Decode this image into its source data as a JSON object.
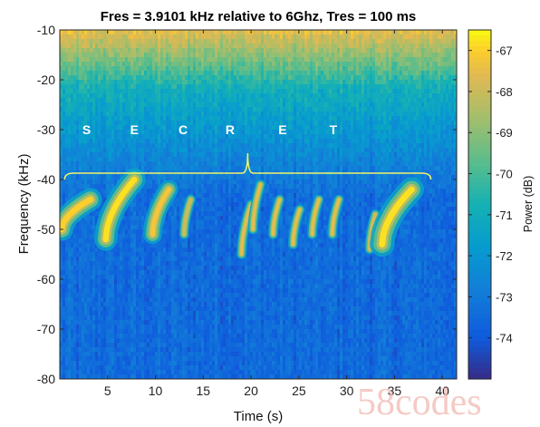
{
  "chart_data": {
    "type": "heatmap",
    "title": "Fres = 3.9101 kHz relative to 6Ghz, Tres = 100 ms",
    "xlabel": "Time (s)",
    "ylabel": "Frequency (kHz)",
    "xlim": [
      0,
      41.5
    ],
    "ylim": [
      -80,
      -10
    ],
    "xticks": [
      5,
      10,
      15,
      20,
      25,
      30,
      35,
      40
    ],
    "xtick_labels": [
      "5",
      "10",
      "15",
      "20",
      "25",
      "30",
      "35",
      "40"
    ],
    "yticks": [
      -10,
      -20,
      -30,
      -40,
      -50,
      -60,
      -70,
      -80
    ],
    "ytick_labels": [
      "-10",
      "-20",
      "-30",
      "-40",
      "-50",
      "-60",
      "-70",
      "-80"
    ],
    "colorbar": {
      "label": "Power (dB)",
      "range": [
        -75,
        -66.5
      ],
      "ticks": [
        -67,
        -68,
        -69,
        -70,
        -71,
        -72,
        -73,
        -74
      ],
      "tick_labels": [
        "-67",
        "-68",
        "-69",
        "-70",
        "-71",
        "-72",
        "-73",
        "-74"
      ],
      "colormap": "parula"
    },
    "background": {
      "description_level": "noise floor",
      "top_edge_power_db": -67.5,
      "upper_band_power_db": -71,
      "floor_power_db": -73.5
    },
    "annotation": {
      "letters": [
        {
          "text": "S",
          "time": 2.8
        },
        {
          "text": "E",
          "time": 7.8
        },
        {
          "text": "C",
          "time": 12.9
        },
        {
          "text": "R",
          "time": 17.8
        },
        {
          "text": "E",
          "time": 23.3
        },
        {
          "text": "T",
          "time": 28.6
        }
      ],
      "letter_freq": -30,
      "brace": {
        "t_start": 0.5,
        "t_end": 38.8,
        "freq": -40
      }
    },
    "chirps": [
      {
        "t_start": 0.2,
        "t_end": 3.2,
        "f_start": -50,
        "f_end": -44,
        "width": 1.2,
        "peak_db": -67
      },
      {
        "t_start": 4.8,
        "t_end": 7.8,
        "f_start": -52,
        "f_end": -40,
        "width": 1.2,
        "peak_db": -66.8
      },
      {
        "t_start": 9.7,
        "t_end": 11.4,
        "f_start": -51,
        "f_end": -42,
        "width": 1.0,
        "peak_db": -67.2
      },
      {
        "t_start": 13.0,
        "t_end": 13.7,
        "f_start": -51,
        "f_end": -44,
        "width": 0.5,
        "peak_db": -68
      },
      {
        "t_start": 19.0,
        "t_end": 20.0,
        "f_start": -55,
        "f_end": -45,
        "width": 0.5,
        "peak_db": -67.5
      },
      {
        "t_start": 20.2,
        "t_end": 21.0,
        "f_start": -50,
        "f_end": -41,
        "width": 0.5,
        "peak_db": -67.5
      },
      {
        "t_start": 22.3,
        "t_end": 23.0,
        "f_start": -51,
        "f_end": -44,
        "width": 0.5,
        "peak_db": -67.5
      },
      {
        "t_start": 24.4,
        "t_end": 25.1,
        "f_start": -53,
        "f_end": -46,
        "width": 0.5,
        "peak_db": -67.5
      },
      {
        "t_start": 26.4,
        "t_end": 27.1,
        "f_start": -51,
        "f_end": -44,
        "width": 0.5,
        "peak_db": -67.5
      },
      {
        "t_start": 28.5,
        "t_end": 29.2,
        "f_start": -51,
        "f_end": -44,
        "width": 0.5,
        "peak_db": -67.5
      },
      {
        "t_start": 32.4,
        "t_end": 33.0,
        "f_start": -54,
        "f_end": -47,
        "width": 0.5,
        "peak_db": -67.8
      },
      {
        "t_start": 33.7,
        "t_end": 36.8,
        "f_start": -53,
        "f_end": -42,
        "width": 1.3,
        "peak_db": -66.8
      }
    ]
  },
  "watermark": "58codes"
}
